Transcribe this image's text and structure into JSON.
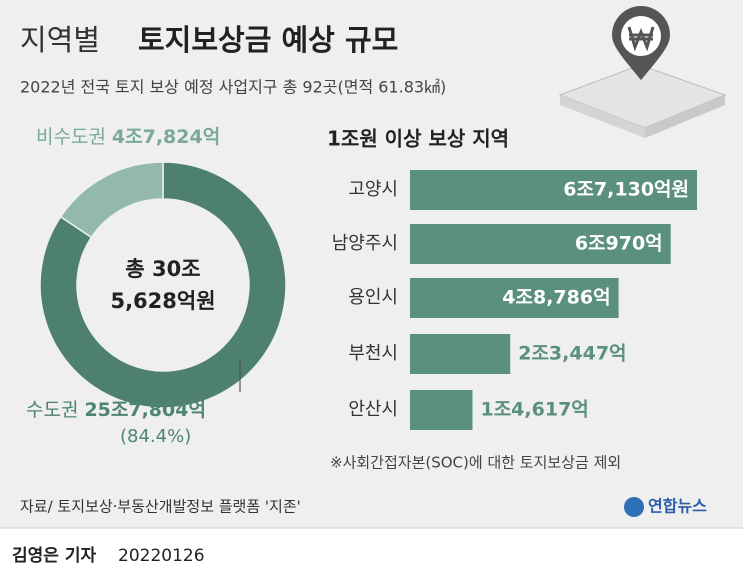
{
  "header": {
    "title_light": "지역별",
    "title_bold": "토지보상금 예상 규모",
    "subtitle": "2022년 전국 토지 보상 예정 사업지구 총 92곳(면적 61.83㎢)"
  },
  "chart_data": [
    {
      "type": "pie",
      "donut": true,
      "categories": [
        "수도권",
        "비수도권"
      ],
      "values": [
        257804,
        47824
      ],
      "value_labels": [
        "25조7,804억",
        "4조7,824억"
      ],
      "colors": [
        "#4e8071",
        "#93b9ad"
      ],
      "label_colors": [
        "#4e8474",
        "#7aa99b"
      ],
      "share_label": "(84.4%)",
      "center_label": [
        "총 30조",
        "5,628억원"
      ]
    },
    {
      "type": "bar",
      "orientation": "horizontal",
      "title": "1조원 이상 보상 지역",
      "categories": [
        "고양시",
        "남양주시",
        "용인시",
        "부천시",
        "안산시"
      ],
      "values": [
        67130,
        60970,
        48786,
        23447,
        14617
      ],
      "value_labels": [
        "6조7,130억원",
        "6조970억",
        "4조8,786억",
        "2조3,447억",
        "1조4,617억"
      ],
      "color": "#5b8f80",
      "note": "※사회간접자본(SOC)에 대한 토지보상금 제외"
    }
  ],
  "footer": {
    "source": "자료/ 토지보상·부동산개발정보 플랫폼 '지존'",
    "logo": "연합뉴스",
    "byline": "김영은 기자",
    "date": "20220126"
  }
}
